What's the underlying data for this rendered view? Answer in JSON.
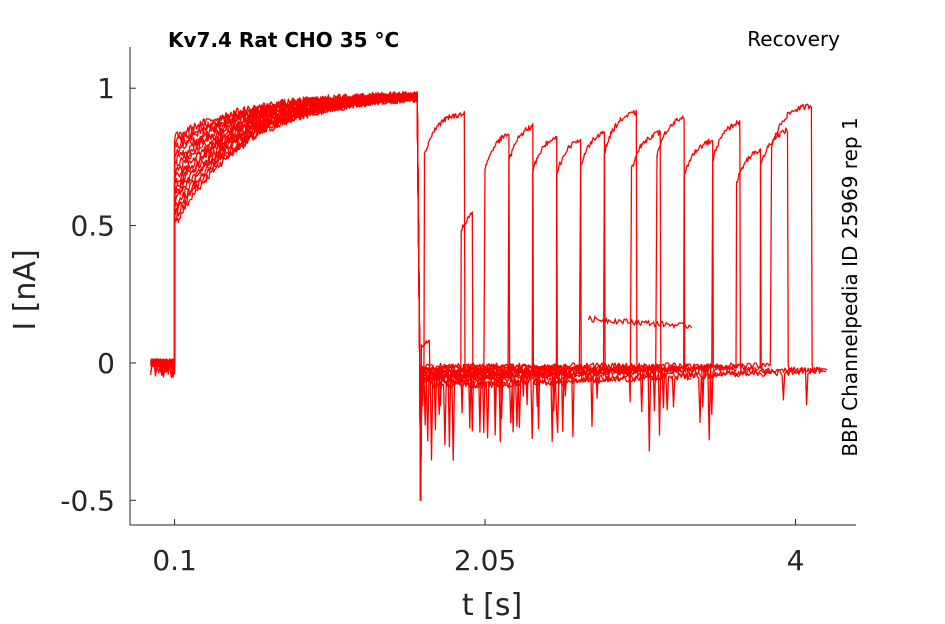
{
  "chart_data": {
    "type": "line",
    "title": "Kv7.4  Rat  CHO  35 °C",
    "protocol_label": "Recovery",
    "side_label": "BBP Channelpedia ID 25969 rep 1",
    "xlabel": "t [s]",
    "ylabel": "I [nA]",
    "xlim": [
      -0.18,
      4.38
    ],
    "ylim": [
      -0.59,
      1.15
    ],
    "xticks": [
      0.1,
      2.05,
      4
    ],
    "xtick_labels": [
      "0.1",
      "2.05",
      "4"
    ],
    "yticks": [
      -0.5,
      0,
      0.5,
      1
    ],
    "ytick_labels": [
      "-0.5",
      "0",
      "0.5",
      "1"
    ],
    "grid": false,
    "legend": "none",
    "color": "#ff0000",
    "prepulse": {
      "t_start": 0.1,
      "t_end": 1.63,
      "baseline": 0.0,
      "onset_level_min": 0.5,
      "onset_level_max": 0.82,
      "plateau": 0.98
    },
    "sweeps": [
      {
        "test_start": 1.65,
        "test_end": 1.7,
        "peak": 0.08
      },
      {
        "test_start": 1.9,
        "test_end": 1.97,
        "peak": 0.58
      },
      {
        "test_start": 1.67,
        "test_end": 1.92,
        "peak": 0.91
      },
      {
        "test_start": 2.05,
        "test_end": 2.2,
        "peak": 0.85
      },
      {
        "test_start": 2.2,
        "test_end": 2.35,
        "peak": 0.88
      },
      {
        "test_start": 2.35,
        "test_end": 2.5,
        "peak": 0.84
      },
      {
        "test_start": 2.5,
        "test_end": 2.65,
        "peak": 0.83
      },
      {
        "test_start": 2.65,
        "test_end": 2.8,
        "peak": 0.86
      },
      {
        "test_start": 2.8,
        "test_end": 3.0,
        "peak": 0.92
      },
      {
        "test_start": 2.97,
        "test_end": 3.15,
        "peak": 0.85
      },
      {
        "test_start": 3.13,
        "test_end": 3.3,
        "peak": 0.91
      },
      {
        "test_start": 3.3,
        "test_end": 3.48,
        "peak": 0.82
      },
      {
        "test_start": 3.48,
        "test_end": 3.65,
        "peak": 0.89
      },
      {
        "test_start": 3.63,
        "test_end": 3.78,
        "peak": 0.79
      },
      {
        "test_start": 3.78,
        "test_end": 3.95,
        "peak": 0.86
      },
      {
        "test_start": 3.85,
        "test_end": 4.1,
        "peak": 0.94
      }
    ]
  }
}
